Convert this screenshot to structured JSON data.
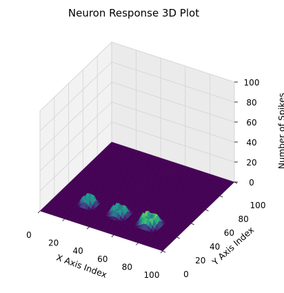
{
  "chart_data": {
    "type": "surface3d",
    "title": "Neuron Response 3D Plot",
    "xlabel": "X Axis Index",
    "ylabel": "Y Axis Index",
    "zlabel": "Number of Spikes",
    "xlim": [
      0,
      100
    ],
    "ylim": [
      0,
      100
    ],
    "zlim": [
      0,
      100
    ],
    "x_ticks": [
      "0",
      "20",
      "40",
      "60",
      "80",
      "100"
    ],
    "y_ticks": [
      "0",
      "20",
      "40",
      "60",
      "80",
      "100"
    ],
    "z_ticks": [
      "0",
      "20",
      "40",
      "60",
      "80",
      "100"
    ],
    "colormap": "viridis",
    "grid": true,
    "baseline_z": 0,
    "clusters": [
      {
        "x_center": 25,
        "y_center": 25,
        "radius": 6,
        "peak_z": 8
      },
      {
        "x_center": 50,
        "y_center": 25,
        "radius": 7,
        "peak_z": 8
      },
      {
        "x_center": 75,
        "y_center": 25,
        "radius": 8,
        "peak_z": 10
      }
    ],
    "colors": {
      "base": "#440154",
      "mid": "#21918c",
      "high": "#fde725",
      "pane": "#f2f2f2",
      "grid": "#d3d3d3"
    }
  }
}
